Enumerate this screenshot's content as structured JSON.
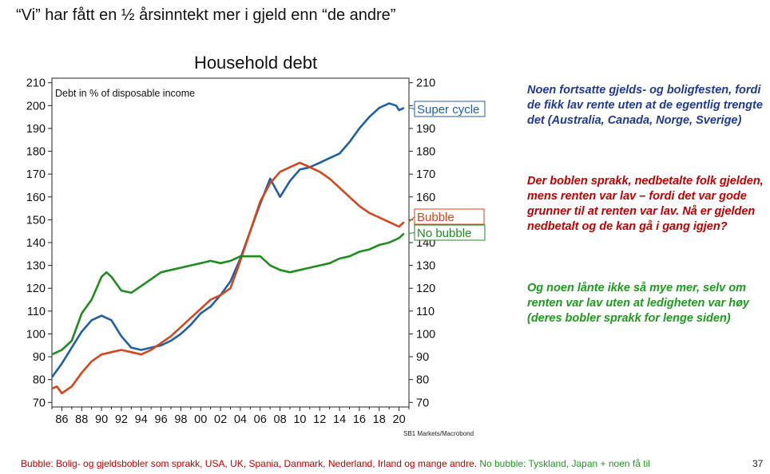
{
  "slide": {
    "title": "“Vi” har fått en ½ årsinntekt mer i gjeld enn “de andre”",
    "source": "SB1 Markets/Macrobond",
    "page_number": "37",
    "footer_bubble": "Bubble: Bolig- og gjeldsbobler som sprakk, USA, UK, Spania, Danmark, Nederland, Irland og mange andre.",
    "footer_nobubble": " No bubble: Tyskland, Japan + noen få til"
  },
  "colors": {
    "super_cycle": "#1f5fa6",
    "bubble": "#d4461c",
    "no_bubble": "#1e8c1e",
    "note_blue": "#1f3a93",
    "note_red": "#c00000",
    "note_green": "#1f9a1f",
    "footer_red": "#c00000",
    "footer_green": "#1f9a1f"
  },
  "notes": [
    {
      "text": "Noen fortsatte gjelds- og boligfesten, fordi de fikk lav rente uten at de egentlig trengte det (Australia, Canada, Norge, Sverige)",
      "color": "#1f3a93"
    },
    {
      "text": "Der boblen sprakk, nedbetalte folk gjelden, mens renten var lav – fordi det var gode grunner til at renten var lav. Nå er gjelden nedbetalt og de kan gå  i gang igjen?",
      "color": "#c00000"
    },
    {
      "text": "Og noen lånte ikke så mye mer, selv om renten var lav uten at ledigheten var høy (deres bobler sprakk for lenge siden)",
      "color": "#1f9a1f"
    }
  ],
  "chart_data": {
    "type": "line",
    "title": "Household debt",
    "annotation": "Debt in % of disposable income",
    "ylim": [
      68,
      212
    ],
    "yticks": [
      70,
      80,
      90,
      100,
      110,
      120,
      130,
      140,
      150,
      160,
      170,
      180,
      190,
      200,
      210
    ],
    "xlim": [
      1985.0,
      2021.0
    ],
    "xticks": [
      1986,
      1988,
      1990,
      1992,
      1994,
      1996,
      1998,
      2000,
      2002,
      2004,
      2006,
      2008,
      2010,
      2012,
      2014,
      2016,
      2018,
      2020
    ],
    "xticklabels": [
      "86",
      "88",
      "90",
      "92",
      "94",
      "96",
      "98",
      "00",
      "02",
      "04",
      "06",
      "08",
      "10",
      "12",
      "14",
      "16",
      "18",
      "20"
    ],
    "series": [
      {
        "name": "Super cycle",
        "color": "#1f5fa6",
        "x": [
          1985.0,
          1986.0,
          1987.0,
          1988.0,
          1989.0,
          1990.0,
          1990.5,
          1991.0,
          1992.0,
          1993.0,
          1994.0,
          1995.0,
          1996.0,
          1997.0,
          1998.0,
          1999.0,
          2000.0,
          2001.0,
          2002.0,
          2003.0,
          2004.0,
          2005.0,
          2006.0,
          2007.0,
          2008.0,
          2009.0,
          2010.0,
          2011.0,
          2012.0,
          2013.0,
          2014.0,
          2015.0,
          2016.0,
          2017.0,
          2018.0,
          2019.0,
          2019.7,
          2020.0,
          2020.5
        ],
        "y": [
          81,
          87,
          94,
          101,
          106,
          108,
          107,
          106,
          99,
          94,
          93,
          94,
          95,
          97,
          100,
          104,
          109,
          112,
          117,
          123,
          133,
          145,
          157,
          168,
          160,
          167,
          172,
          173,
          175,
          177,
          179,
          184,
          190,
          195,
          199,
          201,
          200,
          198,
          199
        ]
      },
      {
        "name": "Bubble",
        "color": "#d4461c",
        "x": [
          1985.0,
          1985.5,
          1986.0,
          1987.0,
          1988.0,
          1989.0,
          1990.0,
          1991.0,
          1992.0,
          1993.0,
          1994.0,
          1995.0,
          1996.0,
          1997.0,
          1998.0,
          1999.0,
          2000.0,
          2001.0,
          2002.0,
          2003.0,
          2004.0,
          2005.0,
          2006.0,
          2007.0,
          2008.0,
          2009.0,
          2010.0,
          2011.0,
          2012.0,
          2013.0,
          2014.0,
          2015.0,
          2016.0,
          2017.0,
          2018.0,
          2019.0,
          2020.0,
          2020.5
        ],
        "y": [
          76,
          77,
          74,
          77,
          83,
          88,
          91,
          92,
          93,
          92,
          91,
          93,
          96,
          99,
          103,
          107,
          111,
          115,
          117,
          120,
          132,
          145,
          158,
          166,
          171,
          173,
          175,
          173,
          171,
          168,
          164,
          160,
          156,
          153,
          151,
          149,
          147,
          149
        ]
      },
      {
        "name": "No bubble",
        "color": "#1e8c1e",
        "x": [
          1985.0,
          1986.0,
          1987.0,
          1988.0,
          1989.0,
          1990.0,
          1990.5,
          1991.0,
          1992.0,
          1993.0,
          1994.0,
          1995.0,
          1996.0,
          1997.0,
          1998.0,
          1999.0,
          2000.0,
          2001.0,
          2002.0,
          2003.0,
          2004.0,
          2005.0,
          2006.0,
          2007.0,
          2008.0,
          2009.0,
          2010.0,
          2011.0,
          2012.0,
          2013.0,
          2014.0,
          2015.0,
          2016.0,
          2017.0,
          2018.0,
          2019.0,
          2020.0,
          2020.5
        ],
        "y": [
          91,
          93,
          97,
          109,
          115,
          125,
          127,
          125,
          119,
          118,
          121,
          124,
          127,
          128,
          129,
          130,
          131,
          132,
          131,
          132,
          134,
          134,
          134,
          130,
          128,
          127,
          128,
          129,
          130,
          131,
          133,
          134,
          136,
          137,
          139,
          140,
          142,
          144
        ]
      }
    ]
  }
}
